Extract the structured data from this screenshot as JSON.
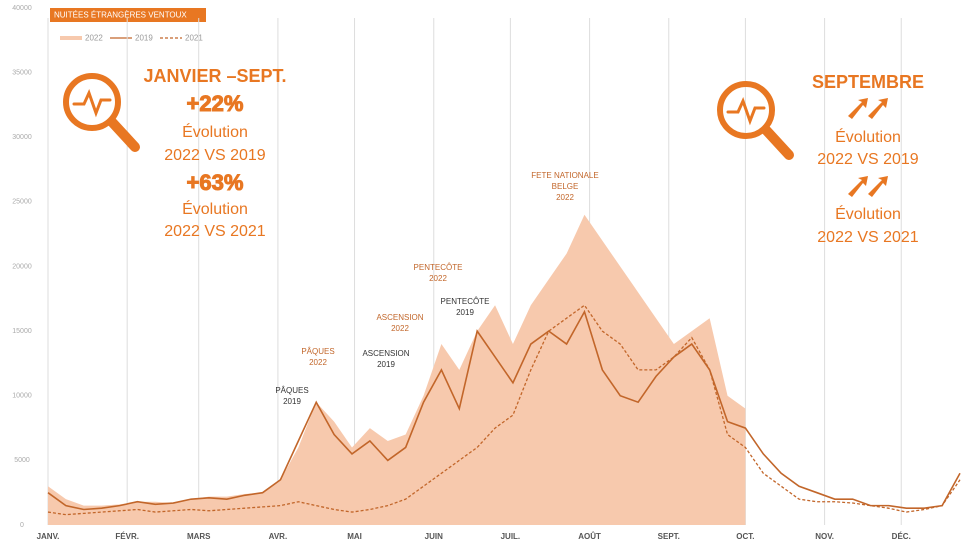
{
  "chart_data": {
    "type": "line",
    "title": "NUITÉES ÉTRANGÈRES VENTOUX",
    "xlim": [
      0,
      357
    ],
    "xticks": [
      {
        "value": 0,
        "label": "JANV."
      },
      {
        "value": 31,
        "label": "FÉVR."
      },
      {
        "value": 59,
        "label": "MARS"
      },
      {
        "value": 90,
        "label": "AVR."
      },
      {
        "value": 120,
        "label": "MAI"
      },
      {
        "value": 151,
        "label": "JUIN"
      },
      {
        "value": 181,
        "label": "JUIL."
      },
      {
        "value": 212,
        "label": "AOÛT"
      },
      {
        "value": 243,
        "label": "SEPT."
      },
      {
        "value": 273,
        "label": "OCT."
      },
      {
        "value": 304,
        "label": "NOV."
      },
      {
        "value": 334,
        "label": "DÉC."
      }
    ],
    "ylim": [
      0,
      40000
    ],
    "yticks": [
      0,
      5000,
      10000,
      15000,
      20000,
      25000,
      30000,
      35000,
      40000
    ],
    "xgrid": true,
    "x": [
      0,
      7,
      14,
      21,
      28,
      35,
      42,
      49,
      56,
      63,
      70,
      77,
      84,
      91,
      98,
      105,
      112,
      119,
      126,
      133,
      140,
      147,
      154,
      161,
      168,
      175,
      182,
      189,
      196,
      203,
      210,
      217,
      224,
      231,
      238,
      245,
      252,
      259,
      266,
      273,
      280,
      287,
      294,
      301,
      308,
      315,
      322,
      329,
      336,
      343,
      350,
      357
    ],
    "series": [
      {
        "name": "2022",
        "style": "area",
        "color": "#f7c9ad",
        "values": [
          3000,
          2000,
          1500,
          1500,
          1600,
          1800,
          1800,
          1700,
          2000,
          2200,
          2200,
          2400,
          2500,
          3500,
          6000,
          9500,
          8000,
          6000,
          7500,
          6500,
          7000,
          10000,
          14000,
          12000,
          15000,
          17000,
          14000,
          17000,
          19000,
          21000,
          24000,
          22000,
          20000,
          18000,
          16000,
          14000,
          15000,
          16000,
          10000,
          9000,
          null,
          null,
          null,
          null,
          null,
          null,
          null,
          null,
          null,
          null,
          null,
          null
        ]
      },
      {
        "name": "2019",
        "style": "solid",
        "color": "#c2662a",
        "values": [
          2500,
          1500,
          1200,
          1300,
          1500,
          1800,
          1600,
          1700,
          2000,
          2100,
          2000,
          2300,
          2500,
          3500,
          6500,
          9500,
          7000,
          5500,
          6500,
          5000,
          6000,
          9500,
          12000,
          9000,
          15000,
          13000,
          11000,
          14000,
          15000,
          14000,
          16500,
          12000,
          10000,
          9500,
          11500,
          13000,
          14000,
          12000,
          8000,
          7500,
          5500,
          4000,
          3000,
          2500,
          2000,
          2000,
          1500,
          1500,
          1300,
          1300,
          1500,
          4000
        ]
      },
      {
        "name": "2021",
        "style": "dashed",
        "color": "#c2662a",
        "values": [
          1000,
          800,
          900,
          1000,
          1100,
          1200,
          1000,
          1100,
          1200,
          1100,
          1200,
          1300,
          1400,
          1500,
          1800,
          1500,
          1200,
          1000,
          1200,
          1500,
          2000,
          3000,
          4000,
          5000,
          6000,
          7500,
          8500,
          12000,
          15000,
          16000,
          17000,
          15000,
          14000,
          12000,
          12000,
          13000,
          14500,
          12000,
          7000,
          6000,
          4000,
          3000,
          2000,
          1800,
          1800,
          1700,
          1500,
          1300,
          1000,
          1200,
          1500,
          3500
        ]
      }
    ],
    "annotations": [
      {
        "lines": [
          "PÂQUES",
          "2022"
        ],
        "tone": "orange"
      },
      {
        "lines": [
          "PÂQUES",
          "2019"
        ],
        "tone": "dark"
      },
      {
        "lines": [
          "ASCENSION",
          "2022"
        ],
        "tone": "orange"
      },
      {
        "lines": [
          "ASCENSION",
          "2019"
        ],
        "tone": "dark"
      },
      {
        "lines": [
          "PENTECÔTE",
          "2022"
        ],
        "tone": "orange"
      },
      {
        "lines": [
          "PENTECÔTE",
          "2019"
        ],
        "tone": "dark"
      },
      {
        "lines": [
          "FETE NATIONALE",
          "BELGE",
          "2022"
        ],
        "tone": "orange"
      }
    ]
  },
  "callouts": {
    "left": {
      "period": "JANVIER –SEPT.",
      "first_change": "+22%",
      "first_label": "Évolution",
      "first_compare": "2022 VS 2019",
      "second_change": "+63%",
      "second_label": "Évolution",
      "second_compare": "2022 VS 2021"
    },
    "right": {
      "period": "SEPTEMBRE",
      "first_label": "Évolution",
      "first_compare": "2022 VS 2019",
      "second_label": "Évolution",
      "second_compare": "2022 VS 2021"
    }
  }
}
